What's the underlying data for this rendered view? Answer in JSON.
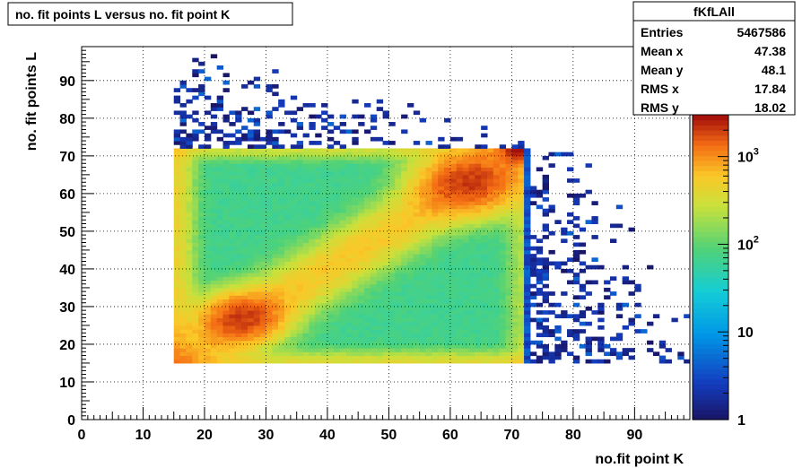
{
  "chart_data": {
    "type": "heatmap",
    "title": "no. fit points L versus no. fit point K",
    "xlabel": "no.fit point K",
    "ylabel": "no. fit points  L",
    "xlim": [
      0,
      99
    ],
    "ylim": [
      0,
      99
    ],
    "x_ticks": [
      0,
      10,
      20,
      30,
      40,
      50,
      60,
      70,
      80,
      90
    ],
    "y_ticks": [
      0,
      10,
      20,
      30,
      40,
      50,
      60,
      70,
      80,
      90
    ],
    "z_scale": "log",
    "zlim": [
      1,
      3000
    ],
    "z_ticks": [
      {
        "value": 1,
        "label": "1"
      },
      {
        "value": 10,
        "label": "10"
      },
      {
        "value": 100,
        "label": "10",
        "sup": "2"
      },
      {
        "value": 1000,
        "label": "10",
        "sup": "3"
      }
    ],
    "grid": true,
    "dense_region": {
      "x": [
        15,
        72
      ],
      "y": [
        15,
        72
      ]
    },
    "maxima": [
      {
        "x": 26,
        "y": 27
      },
      {
        "x": 63,
        "y": 63
      },
      {
        "x": 71,
        "y": 71
      }
    ],
    "stats": {
      "name": "fKfLAll",
      "rows": [
        {
          "label": "Entries",
          "value": "5467586"
        },
        {
          "label": "Mean x",
          "value": "47.38"
        },
        {
          "label": "Mean y",
          "value": "48.1"
        },
        {
          "label": "RMS x",
          "value": "17.84"
        },
        {
          "label": "RMS y",
          "value": "18.02"
        }
      ]
    }
  }
}
